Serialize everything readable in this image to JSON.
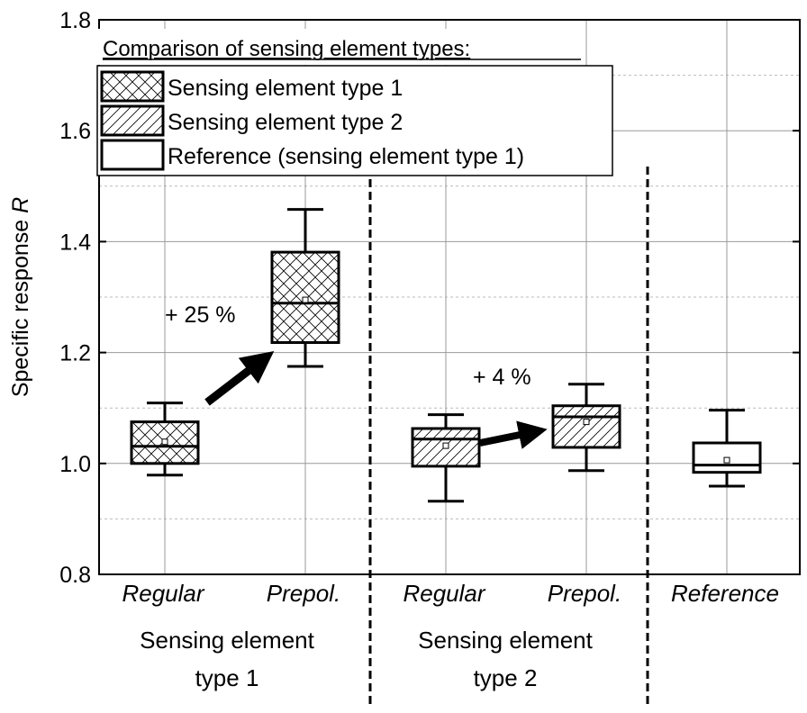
{
  "chart_data": {
    "type": "box",
    "ylabel": "Specific response",
    "ylabel_italic": "R",
    "ylim": [
      0.8,
      1.8
    ],
    "yticks": [
      "0.8",
      "1.0",
      "1.2",
      "1.4",
      "1.6",
      "1.8"
    ],
    "grid": true,
    "categories": [
      "Regular",
      "Prepol.",
      "Regular",
      "Prepol.",
      "Reference"
    ],
    "groups": [
      {
        "line1": "Sensing element",
        "line2": "type 1"
      },
      {
        "line1": "Sensing element",
        "line2": "type 2"
      }
    ],
    "boxes": [
      {
        "category": "Regular",
        "series": "Sensing element type 1",
        "pattern": "crosshatch",
        "whisker_low": 0.979,
        "q1": 1.0,
        "median": 1.031,
        "mean": 1.039,
        "q3": 1.075,
        "whisker_high": 1.109
      },
      {
        "category": "Prepol.",
        "series": "Sensing element type 1",
        "pattern": "crosshatch",
        "whisker_low": 1.175,
        "q1": 1.218,
        "median": 1.289,
        "mean": 1.295,
        "q3": 1.381,
        "whisker_high": 1.458
      },
      {
        "category": "Regular",
        "series": "Sensing element type 2",
        "pattern": "diagonal",
        "whisker_low": 0.932,
        "q1": 0.995,
        "median": 1.044,
        "mean": 1.032,
        "q3": 1.063,
        "whisker_high": 1.088
      },
      {
        "category": "Prepol.",
        "series": "Sensing element type 2",
        "pattern": "diagonal",
        "whisker_low": 0.987,
        "q1": 1.029,
        "median": 1.084,
        "mean": 1.075,
        "q3": 1.104,
        "whisker_high": 1.143
      },
      {
        "category": "Reference",
        "series": "Reference (sensing element type 1)",
        "pattern": "none",
        "whisker_low": 0.959,
        "q1": 0.984,
        "median": 0.997,
        "mean": 1.006,
        "q3": 1.037,
        "whisker_high": 1.096
      }
    ],
    "legend": {
      "title": "Comparison of sensing element types:",
      "placement": "top-left",
      "entries": [
        {
          "label": "Sensing element type 1",
          "pattern": "crosshatch"
        },
        {
          "label": "Sensing element type 2",
          "pattern": "diagonal"
        },
        {
          "label": "Reference (sensing element type 1)",
          "pattern": "none"
        }
      ]
    },
    "annotations": [
      {
        "text": "+ 25 %",
        "from_box": 0,
        "to_box": 1
      },
      {
        "text": "+ 4 %",
        "from_box": 2,
        "to_box": 3
      }
    ]
  }
}
